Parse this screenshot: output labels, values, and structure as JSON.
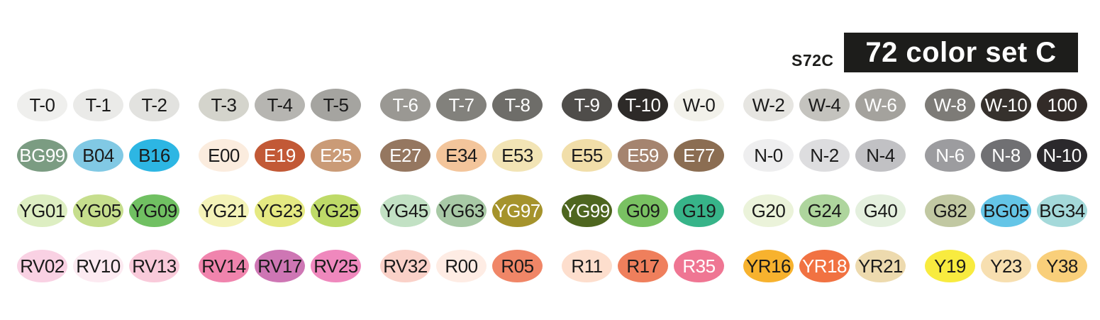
{
  "header": {
    "code": "S72C",
    "title": "72 color set C",
    "box_bg": "#1d1d1b",
    "box_fg": "#ffffff"
  },
  "palette": {
    "text_dark": "#1b1b1b",
    "text_light": "#ffffff",
    "rows": [
      [
        {
          "label": "T-0",
          "bg": "#EFEFED",
          "fg": "#1b1b1b"
        },
        {
          "label": "T-1",
          "bg": "#EAEAE8",
          "fg": "#1b1b1b"
        },
        {
          "label": "T-2",
          "bg": "#E2E2DF",
          "fg": "#1b1b1b"
        },
        {
          "label": "T-3",
          "bg": "#D4D4CC",
          "fg": "#1b1b1b"
        },
        {
          "label": "T-4",
          "bg": "#B6B5B1",
          "fg": "#1b1b1b"
        },
        {
          "label": "T-5",
          "bg": "#A5A4A0",
          "fg": "#1b1b1b"
        },
        {
          "label": "T-6",
          "bg": "#9A9893",
          "fg": "#ffffff"
        },
        {
          "label": "T-7",
          "bg": "#82817C",
          "fg": "#ffffff"
        },
        {
          "label": "T-8",
          "bg": "#6E6D69",
          "fg": "#ffffff"
        },
        {
          "label": "T-9",
          "bg": "#4F4D4A",
          "fg": "#ffffff"
        },
        {
          "label": "T-10",
          "bg": "#2D2A28",
          "fg": "#ffffff"
        },
        {
          "label": "W-0",
          "bg": "#F2F1EA",
          "fg": "#1b1b1b"
        },
        {
          "label": "W-2",
          "bg": "#E6E5E1",
          "fg": "#1b1b1b"
        },
        {
          "label": "W-4",
          "bg": "#C4C3BE",
          "fg": "#1b1b1b"
        },
        {
          "label": "W-6",
          "bg": "#A4A29D",
          "fg": "#ffffff"
        },
        {
          "label": "W-8",
          "bg": "#7D7B77",
          "fg": "#ffffff"
        },
        {
          "label": "W-10",
          "bg": "#36312D",
          "fg": "#ffffff"
        },
        {
          "label": "100",
          "bg": "#322B28",
          "fg": "#ffffff"
        }
      ],
      [
        {
          "label": "BG99",
          "bg": "#7B9C82",
          "fg": "#ffffff"
        },
        {
          "label": "B04",
          "bg": "#81C9E4",
          "fg": "#1b1b1b"
        },
        {
          "label": "B16",
          "bg": "#2DB6E3",
          "fg": "#1b1b1b"
        },
        {
          "label": "E00",
          "bg": "#FBECDE",
          "fg": "#1b1b1b"
        },
        {
          "label": "E19",
          "bg": "#C25936",
          "fg": "#ffffff"
        },
        {
          "label": "E25",
          "bg": "#CA9B77",
          "fg": "#ffffff"
        },
        {
          "label": "E27",
          "bg": "#957760",
          "fg": "#ffffff"
        },
        {
          "label": "E34",
          "bg": "#F3C59B",
          "fg": "#1b1b1b"
        },
        {
          "label": "E53",
          "bg": "#F2E4B5",
          "fg": "#1b1b1b"
        },
        {
          "label": "E55",
          "bg": "#F1DEA9",
          "fg": "#1b1b1b"
        },
        {
          "label": "E59",
          "bg": "#A5846F",
          "fg": "#ffffff"
        },
        {
          "label": "E77",
          "bg": "#8B6D52",
          "fg": "#ffffff"
        },
        {
          "label": "N-0",
          "bg": "#EEEEEF",
          "fg": "#1b1b1b"
        },
        {
          "label": "N-2",
          "bg": "#DDDDDF",
          "fg": "#1b1b1b"
        },
        {
          "label": "N-4",
          "bg": "#C1C1C4",
          "fg": "#1b1b1b"
        },
        {
          "label": "N-6",
          "bg": "#9C9C9F",
          "fg": "#ffffff"
        },
        {
          "label": "N-8",
          "bg": "#707073",
          "fg": "#ffffff"
        },
        {
          "label": "N-10",
          "bg": "#2B292C",
          "fg": "#ffffff"
        }
      ],
      [
        {
          "label": "YG01",
          "bg": "#DDEEC2",
          "fg": "#1b1b1b"
        },
        {
          "label": "YG05",
          "bg": "#C6DE8D",
          "fg": "#1b1b1b"
        },
        {
          "label": "YG09",
          "bg": "#70C062",
          "fg": "#1b1b1b"
        },
        {
          "label": "YG21",
          "bg": "#F4F3B8",
          "fg": "#1b1b1b"
        },
        {
          "label": "YG23",
          "bg": "#E5E982",
          "fg": "#1b1b1b"
        },
        {
          "label": "YG25",
          "bg": "#BEDA68",
          "fg": "#1b1b1b"
        },
        {
          "label": "YG45",
          "bg": "#C2E1C4",
          "fg": "#1b1b1b"
        },
        {
          "label": "YG63",
          "bg": "#A8C9A6",
          "fg": "#1b1b1b"
        },
        {
          "label": "YG97",
          "bg": "#A5932C",
          "fg": "#ffffff"
        },
        {
          "label": "YG99",
          "bg": "#4E661F",
          "fg": "#ffffff"
        },
        {
          "label": "G09",
          "bg": "#79C162",
          "fg": "#1b1b1b"
        },
        {
          "label": "G19",
          "bg": "#37B489",
          "fg": "#1b1b1b"
        },
        {
          "label": "G20",
          "bg": "#EBF3DA",
          "fg": "#1b1b1b"
        },
        {
          "label": "G24",
          "bg": "#AED59D",
          "fg": "#1b1b1b"
        },
        {
          "label": "G40",
          "bg": "#E4F0DE",
          "fg": "#1b1b1b"
        },
        {
          "label": "G82",
          "bg": "#C1C8A2",
          "fg": "#1b1b1b"
        },
        {
          "label": "BG05",
          "bg": "#64C5E7",
          "fg": "#1b1b1b"
        },
        {
          "label": "BG34",
          "bg": "#A4D9DA",
          "fg": "#1b1b1b"
        }
      ],
      [
        {
          "label": "RV02",
          "bg": "#F9D1E3",
          "fg": "#1b1b1b"
        },
        {
          "label": "RV10",
          "bg": "#FCEAF1",
          "fg": "#1b1b1b"
        },
        {
          "label": "RV13",
          "bg": "#F9CADA",
          "fg": "#1b1b1b"
        },
        {
          "label": "RV14",
          "bg": "#F084AD",
          "fg": "#1b1b1b"
        },
        {
          "label": "RV17",
          "bg": "#CE76B4",
          "fg": "#1b1b1b"
        },
        {
          "label": "RV25",
          "bg": "#EF88BD",
          "fg": "#1b1b1b"
        },
        {
          "label": "RV32",
          "bg": "#FAD1C8",
          "fg": "#1b1b1b"
        },
        {
          "label": "R00",
          "bg": "#FEECE4",
          "fg": "#1b1b1b"
        },
        {
          "label": "R05",
          "bg": "#F08667",
          "fg": "#1b1b1b"
        },
        {
          "label": "R11",
          "bg": "#FDDECD",
          "fg": "#1b1b1b"
        },
        {
          "label": "R17",
          "bg": "#EF7F5C",
          "fg": "#1b1b1b"
        },
        {
          "label": "R35",
          "bg": "#EF7693",
          "fg": "#ffffff"
        },
        {
          "label": "YR16",
          "bg": "#F7B22E",
          "fg": "#1b1b1b"
        },
        {
          "label": "YR18",
          "bg": "#F17242",
          "fg": "#ffffff"
        },
        {
          "label": "YR21",
          "bg": "#EDDAAE",
          "fg": "#1b1b1b"
        },
        {
          "label": "Y19",
          "bg": "#F8EB3F",
          "fg": "#1b1b1b"
        },
        {
          "label": "Y23",
          "bg": "#F7DFB0",
          "fg": "#1b1b1b"
        },
        {
          "label": "Y38",
          "bg": "#F9CF7A",
          "fg": "#1b1b1b"
        }
      ]
    ]
  }
}
